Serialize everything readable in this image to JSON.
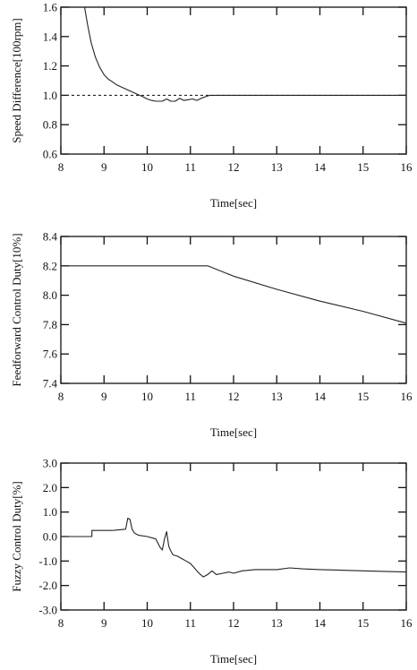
{
  "chart_data": [
    {
      "type": "line",
      "title": "",
      "xlabel": "Time[sec]",
      "ylabel": "Speed Difference[100rpm]",
      "xlim": [
        8,
        16
      ],
      "ylim": [
        0.6,
        1.6
      ],
      "xticks": [
        8,
        9,
        10,
        11,
        12,
        13,
        14,
        15,
        16
      ],
      "xtick_labels": [
        "8",
        "9",
        "10",
        "11",
        "12",
        "13",
        "14",
        "15",
        "16"
      ],
      "yticks": [
        0.6,
        0.8,
        1.0,
        1.2,
        1.4,
        1.6
      ],
      "ytick_labels": [
        "0.6",
        "0.8",
        "1.0",
        "1.2",
        "1.4",
        "1.6"
      ],
      "grid": false,
      "series": [
        {
          "style": "solid",
          "x": [
            8.55,
            8.62,
            8.7,
            8.8,
            8.9,
            9.0,
            9.1,
            9.2,
            9.3,
            9.45,
            9.6,
            9.75,
            9.9,
            10.0,
            10.1,
            10.2,
            10.35,
            10.45,
            10.55,
            10.65,
            10.75,
            10.85,
            10.95,
            11.05,
            11.15,
            11.25,
            11.35,
            11.45,
            12.0,
            13.0,
            14.0,
            15.0,
            16.0
          ],
          "y": [
            1.6,
            1.48,
            1.36,
            1.26,
            1.19,
            1.14,
            1.11,
            1.09,
            1.07,
            1.05,
            1.03,
            1.01,
            0.99,
            0.975,
            0.965,
            0.96,
            0.96,
            0.975,
            0.96,
            0.96,
            0.98,
            0.965,
            0.97,
            0.975,
            0.965,
            0.98,
            0.99,
            1.0,
            1.0,
            1.0,
            1.0,
            1.0,
            1.0
          ]
        },
        {
          "style": "dashed",
          "x": [
            8.0,
            16.0
          ],
          "y": [
            1.0,
            1.0
          ]
        }
      ]
    },
    {
      "type": "line",
      "title": "",
      "xlabel": "Time[sec]",
      "ylabel": "Feedforward Control Duty[10%]",
      "xlim": [
        8,
        16
      ],
      "ylim": [
        7.4,
        8.4
      ],
      "xticks": [
        8,
        9,
        10,
        11,
        12,
        13,
        14,
        15,
        16
      ],
      "xtick_labels": [
        "8",
        "9",
        "10",
        "11",
        "12",
        "13",
        "14",
        "15",
        "16"
      ],
      "yticks": [
        7.4,
        7.6,
        7.8,
        8.0,
        8.2,
        8.4
      ],
      "ytick_labels": [
        "7.4",
        "7.6",
        "7.8",
        "8.0",
        "8.2",
        "8.4"
      ],
      "grid": false,
      "series": [
        {
          "style": "solid",
          "x": [
            8.0,
            11.4,
            12.0,
            13.0,
            14.0,
            15.0,
            16.0
          ],
          "y": [
            8.2,
            8.2,
            8.13,
            8.04,
            7.96,
            7.89,
            7.81
          ]
        }
      ]
    },
    {
      "type": "line",
      "title": "",
      "xlabel": "Time[sec]",
      "ylabel": "Fuzzy Control Duty[%]",
      "xlim": [
        8,
        16
      ],
      "ylim": [
        -3.0,
        3.0
      ],
      "xticks": [
        8,
        9,
        10,
        11,
        12,
        13,
        14,
        15,
        16
      ],
      "xtick_labels": [
        "8",
        "9",
        "10",
        "11",
        "12",
        "13",
        "14",
        "15",
        "16"
      ],
      "yticks": [
        -3.0,
        -2.0,
        -1.0,
        0.0,
        1.0,
        2.0,
        3.0
      ],
      "ytick_labels": [
        "-3.0",
        "-2.0",
        "-1.0",
        "0.0",
        "1.0",
        "2.0",
        "3.0"
      ],
      "grid": false,
      "series": [
        {
          "style": "solid",
          "x": [
            8.0,
            8.72,
            8.72,
            9.2,
            9.5,
            9.55,
            9.6,
            9.65,
            9.7,
            9.75,
            9.8,
            10.0,
            10.2,
            10.3,
            10.35,
            10.4,
            10.45,
            10.5,
            10.55,
            10.6,
            10.7,
            10.8,
            10.9,
            11.0,
            11.1,
            11.2,
            11.3,
            11.4,
            11.5,
            11.6,
            11.75,
            11.9,
            12.0,
            12.2,
            12.5,
            13.0,
            13.3,
            13.6,
            14.0,
            15.0,
            16.0
          ],
          "y": [
            0.0,
            0.0,
            0.25,
            0.25,
            0.3,
            0.75,
            0.7,
            0.3,
            0.15,
            0.1,
            0.05,
            0.0,
            -0.1,
            -0.45,
            -0.55,
            -0.1,
            0.2,
            -0.4,
            -0.6,
            -0.75,
            -0.8,
            -0.9,
            -1.0,
            -1.1,
            -1.3,
            -1.5,
            -1.65,
            -1.55,
            -1.4,
            -1.55,
            -1.5,
            -1.45,
            -1.5,
            -1.4,
            -1.35,
            -1.35,
            -1.28,
            -1.32,
            -1.35,
            -1.4,
            -1.45
          ]
        }
      ]
    }
  ]
}
